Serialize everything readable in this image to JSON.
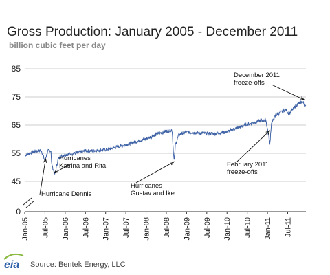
{
  "chart_data": {
    "type": "line",
    "title": "Gross Production: January 2005 - December 2011",
    "subtitle": "billion cubic feet per day",
    "ylabel": "",
    "xlabel": "",
    "ylim": [
      0,
      85
    ],
    "yticks": [
      0,
      45,
      55,
      65,
      75,
      85
    ],
    "axis_break": "between 0 and 45",
    "grid": "horizontal",
    "legend": "none",
    "line_color": "#3f63a6",
    "xticks": [
      "Jan-05",
      "Jul-05",
      "Jan-06",
      "Jul-06",
      "Jan-07",
      "Jul-07",
      "Jan-08",
      "Jul-08",
      "Jan-09",
      "Jul-09",
      "Jan-10",
      "Jul-10",
      "Jan-11",
      "Jul-11"
    ],
    "series": [
      {
        "values_daily_approx": [
          [
            "2005-01-01",
            54.3
          ],
          [
            "2005-02-01",
            54.8
          ],
          [
            "2005-03-01",
            55.3
          ],
          [
            "2005-04-01",
            55.7
          ],
          [
            "2005-05-01",
            55.8
          ],
          [
            "2005-06-01",
            56.1
          ],
          [
            "2005-07-01",
            52.5
          ],
          [
            "2005-08-01",
            55.8
          ],
          [
            "2005-08-28",
            56.0
          ],
          [
            "2005-09-01",
            51.5
          ],
          [
            "2005-09-15",
            49.5
          ],
          [
            "2005-10-01",
            47.5
          ],
          [
            "2005-11-01",
            53.0
          ],
          [
            "2005-12-01",
            54.0
          ],
          [
            "2006-01-01",
            54.5
          ],
          [
            "2006-04-01",
            55.0
          ],
          [
            "2006-07-01",
            55.8
          ],
          [
            "2006-10-01",
            56.0
          ],
          [
            "2007-01-01",
            56.3
          ],
          [
            "2007-04-01",
            57.0
          ],
          [
            "2007-07-01",
            58.0
          ],
          [
            "2007-10-01",
            59.0
          ],
          [
            "2008-01-01",
            60.0
          ],
          [
            "2008-04-01",
            61.5
          ],
          [
            "2008-07-01",
            62.8
          ],
          [
            "2008-09-01",
            63.3
          ],
          [
            "2008-09-12",
            56.0
          ],
          [
            "2008-09-20",
            52.0
          ],
          [
            "2008-10-01",
            58.0
          ],
          [
            "2008-11-01",
            61.5
          ],
          [
            "2009-01-01",
            62.5
          ],
          [
            "2009-04-01",
            62.3
          ],
          [
            "2009-07-01",
            62.0
          ],
          [
            "2009-10-01",
            62.0
          ],
          [
            "2010-01-01",
            62.5
          ],
          [
            "2010-04-01",
            63.8
          ],
          [
            "2010-07-01",
            65.0
          ],
          [
            "2010-10-01",
            66.2
          ],
          [
            "2011-01-01",
            66.8
          ],
          [
            "2011-02-01",
            60.0
          ],
          [
            "2011-02-05",
            57.5
          ],
          [
            "2011-02-20",
            65.5
          ],
          [
            "2011-04-01",
            68.5
          ],
          [
            "2011-07-01",
            70.5
          ],
          [
            "2011-08-01",
            69.0
          ],
          [
            "2011-10-01",
            72.0
          ],
          [
            "2011-11-01",
            72.8
          ],
          [
            "2011-12-01",
            73.2
          ],
          [
            "2011-12-31",
            71.5
          ]
        ]
      }
    ],
    "annotations": [
      {
        "text": [
          "Hurricanes",
          "Katrina and Rita"
        ],
        "date": "2005-09-25",
        "value": 48
      },
      {
        "text": [
          "Hurricane Dennis"
        ],
        "date": "2005-07-10",
        "value": 53
      },
      {
        "text": [
          "Hurricanes",
          "Gustav and Ike"
        ],
        "date": "2008-09-18",
        "value": 52
      },
      {
        "text": [
          "February 2011",
          "freeze-offs"
        ],
        "date": "2011-02-05",
        "value": 63
      },
      {
        "text": [
          "December 2011",
          "freeze-offs"
        ],
        "date": "2011-12-15",
        "value": 74
      }
    ]
  },
  "source": "Source: Bentek Energy, LLC",
  "logo_text": "eia"
}
